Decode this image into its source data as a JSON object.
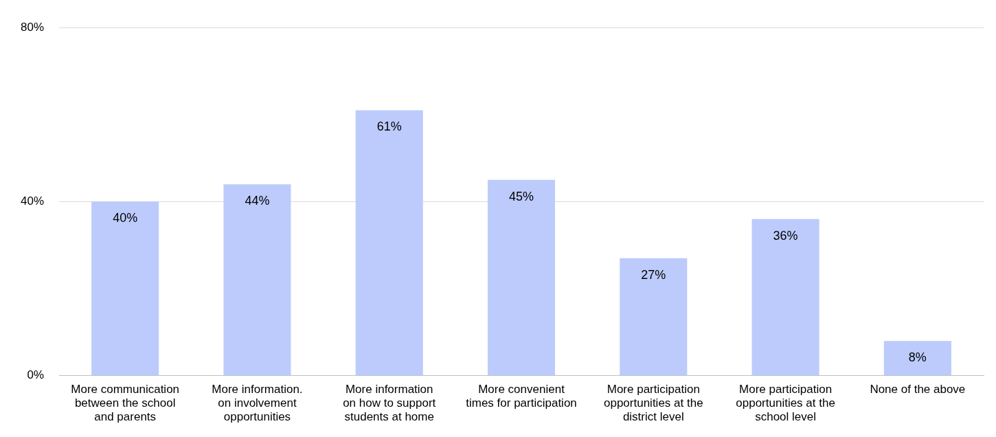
{
  "chart_data": {
    "type": "bar",
    "categories": [
      "More communication\nbetween the school\nand parents",
      "More information.\non involvement\nopportunities",
      "More information\non how to support\nstudents at home",
      "More convenient\ntimes for participation",
      "More participation\nopportunities at the\ndistrict level",
      "More participation\nopportunities at the\nschool level",
      "None of the above"
    ],
    "values": [
      40,
      44,
      61,
      45,
      27,
      36,
      8
    ],
    "color": "#bccbfb",
    "ylim": [
      0,
      80
    ],
    "yticks": [
      {
        "value": 0,
        "label": "0%"
      },
      {
        "value": 40,
        "label": "40%"
      },
      {
        "value": 80,
        "label": "80%"
      }
    ],
    "grid": "y",
    "legend": false,
    "value_labels": [
      "40%",
      "44%",
      "61%",
      "45%",
      "27%",
      "36%",
      "8%"
    ]
  }
}
